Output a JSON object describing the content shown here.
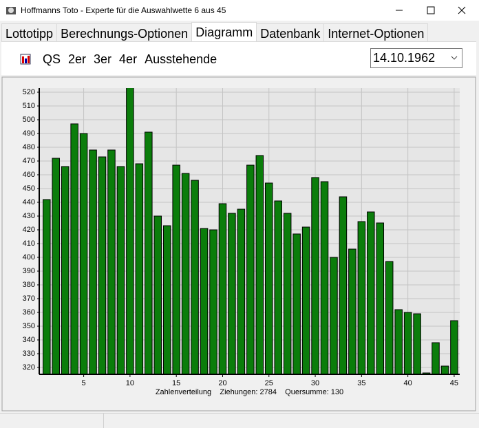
{
  "window": {
    "title": "Hoffmanns Toto - Experte für die Auswahlwette 6 aus 45"
  },
  "tabs": {
    "items": [
      "Lottotipp",
      "Berechnungs-Optionen",
      "Diagramm",
      "Datenbank",
      "Internet-Optionen"
    ],
    "active": 2
  },
  "toolbar": {
    "buttons": [
      "QS",
      "2er",
      "3er",
      "4er",
      "Ausstehende"
    ],
    "date": "14.10.1962"
  },
  "chart_data": {
    "type": "bar",
    "x_label": "Zahlenverteilung    Ziehungen: 2784    Quersumme: 130",
    "x": [
      1,
      2,
      3,
      4,
      5,
      6,
      7,
      8,
      9,
      10,
      11,
      12,
      13,
      14,
      15,
      16,
      17,
      18,
      19,
      20,
      21,
      22,
      23,
      24,
      25,
      26,
      27,
      28,
      29,
      30,
      31,
      32,
      33,
      34,
      35,
      36,
      37,
      38,
      39,
      40,
      41,
      42,
      43,
      44,
      45
    ],
    "values": [
      442,
      472,
      466,
      497,
      490,
      478,
      473,
      478,
      466,
      524,
      468,
      491,
      430,
      423,
      467,
      461,
      456,
      421,
      420,
      439,
      432,
      435,
      467,
      474,
      454,
      441,
      432,
      417,
      422,
      458,
      455,
      400,
      444,
      406,
      426,
      433,
      425,
      397,
      362,
      360,
      359,
      316,
      338,
      321,
      354
    ],
    "color": "#0b7d0b",
    "xlim": [
      0.2,
      45.6
    ],
    "xticks": [
      5,
      10,
      15,
      20,
      25,
      30,
      35,
      40,
      45
    ],
    "ylim": [
      315,
      523
    ],
    "yticks": [
      320,
      330,
      340,
      350,
      360,
      370,
      380,
      390,
      400,
      410,
      420,
      430,
      440,
      450,
      460,
      470,
      480,
      490,
      500,
      510,
      520
    ],
    "grid": true
  }
}
